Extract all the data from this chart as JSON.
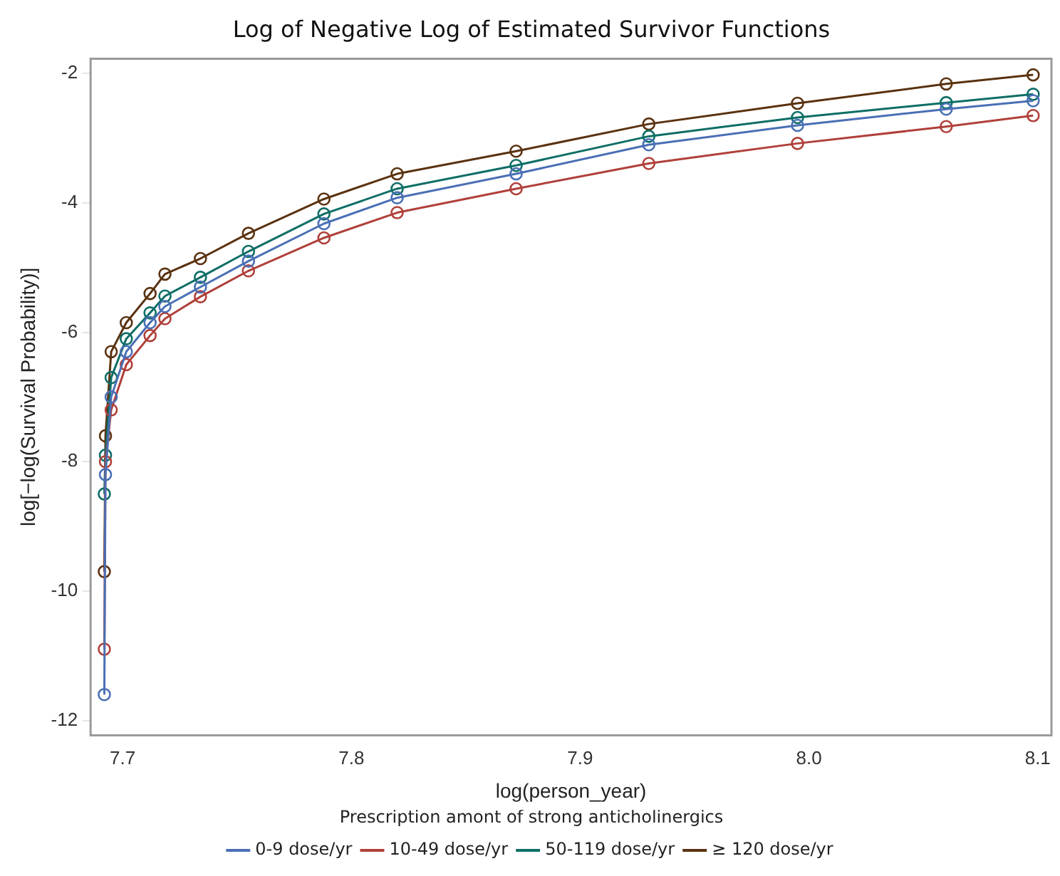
{
  "chart_data": {
    "type": "line",
    "title": "Log of Negative Log of Estimated Survivor Functions",
    "xlabel": "log(person_year)",
    "ylabel": "log[−log(Survival Probability)]",
    "legend_title": "Prescription amont of strong anticholinergics",
    "legend": "bottom",
    "marker": "circle",
    "grid": false,
    "x": [
      7.692,
      7.6925,
      7.695,
      7.7016,
      7.712,
      7.7185,
      7.734,
      7.755,
      7.788,
      7.82,
      7.872,
      7.93,
      7.995,
      8.06,
      8.098
    ],
    "xlim": [
      7.686,
      8.106
    ],
    "xticks": [
      7.7,
      7.8,
      7.9,
      {
        "value": 8,
        "label": "8.0"
      },
      8.1
    ],
    "ylim": [
      -12.23,
      -1.77
    ],
    "yticks": [
      -2,
      -4,
      -6,
      -8,
      -10,
      -12
    ],
    "series": [
      {
        "name": "0-9 dose/yr",
        "color": "#4a6fb5",
        "values": [
          -11.6,
          -8.2,
          -7.0,
          -6.3,
          -5.85,
          -5.6,
          -5.3,
          -4.9,
          -4.32,
          -3.92,
          -3.55,
          -3.1,
          -2.8,
          -2.55,
          -2.42
        ]
      },
      {
        "name": "10-49 dose/yr",
        "color": "#b0403a",
        "values": [
          -10.9,
          -8.0,
          -7.2,
          -6.5,
          -6.05,
          -5.79,
          -5.45,
          -5.05,
          -4.54,
          -4.15,
          -3.78,
          -3.39,
          -3.08,
          -2.82,
          -2.65
        ]
      },
      {
        "name": "50-119 dose/yr",
        "color": "#0e6e66",
        "values": [
          -8.5,
          -7.9,
          -6.7,
          -6.1,
          -5.7,
          -5.44,
          -5.15,
          -4.75,
          -4.17,
          -3.78,
          -3.42,
          -2.97,
          -2.68,
          -2.45,
          -2.32
        ]
      },
      {
        "name": "≥ 120 dose/yr",
        "color": "#5a3210",
        "values": [
          -9.7,
          -7.6,
          -6.3,
          -5.85,
          -5.4,
          -5.1,
          -4.86,
          -4.47,
          -3.94,
          -3.55,
          -3.2,
          -2.78,
          -2.46,
          -2.16,
          -2.02
        ]
      }
    ]
  }
}
